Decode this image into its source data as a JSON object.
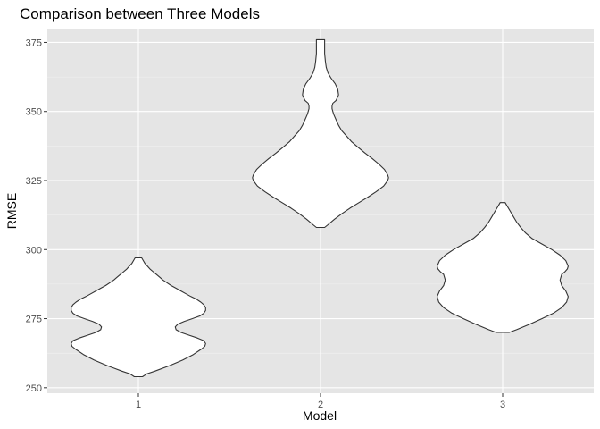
{
  "chart_data": {
    "type": "violin",
    "title": "Comparison between Three Models",
    "xlabel": "Model",
    "ylabel": "RMSE",
    "categories": [
      "1",
      "2",
      "3"
    ],
    "yticks": [
      250,
      275,
      300,
      325,
      350,
      375
    ],
    "ylim": [
      248,
      380
    ],
    "grid": true,
    "colors": {
      "panel": "#e5e5e5",
      "grid_major": "#ffffff",
      "violin_fill": "#ffffff",
      "violin_stroke": "#333333",
      "tick": "#333333"
    },
    "series": [
      {
        "category": "1",
        "min": 254,
        "max": 297,
        "profile": [
          [
            254,
            0.05
          ],
          [
            255,
            0.1
          ],
          [
            256,
            0.2
          ],
          [
            258,
            0.38
          ],
          [
            260,
            0.54
          ],
          [
            262,
            0.67
          ],
          [
            264,
            0.77
          ],
          [
            265,
            0.81
          ],
          [
            266,
            0.82
          ],
          [
            267,
            0.8
          ],
          [
            268,
            0.72
          ],
          [
            269,
            0.62
          ],
          [
            270,
            0.52
          ],
          [
            271,
            0.46
          ],
          [
            272,
            0.45
          ],
          [
            273,
            0.48
          ],
          [
            274,
            0.56
          ],
          [
            275,
            0.66
          ],
          [
            276,
            0.75
          ],
          [
            277,
            0.8
          ],
          [
            278,
            0.82
          ],
          [
            279,
            0.82
          ],
          [
            280,
            0.8
          ],
          [
            281,
            0.76
          ],
          [
            282,
            0.71
          ],
          [
            283,
            0.64
          ],
          [
            284,
            0.58
          ],
          [
            285,
            0.52
          ],
          [
            286,
            0.46
          ],
          [
            287,
            0.4
          ],
          [
            288,
            0.35
          ],
          [
            289,
            0.3
          ],
          [
            290,
            0.26
          ],
          [
            291,
            0.22
          ],
          [
            292,
            0.18
          ],
          [
            293,
            0.14
          ],
          [
            294,
            0.11
          ],
          [
            295,
            0.08
          ],
          [
            296,
            0.06
          ],
          [
            297,
            0.04
          ]
        ]
      },
      {
        "category": "2",
        "min": 308,
        "max": 376,
        "profile": [
          [
            308,
            0.05
          ],
          [
            309,
            0.09
          ],
          [
            311,
            0.17
          ],
          [
            313,
            0.26
          ],
          [
            315,
            0.36
          ],
          [
            317,
            0.47
          ],
          [
            319,
            0.58
          ],
          [
            321,
            0.68
          ],
          [
            323,
            0.77
          ],
          [
            325,
            0.82
          ],
          [
            326,
            0.83
          ],
          [
            327,
            0.82
          ],
          [
            329,
            0.78
          ],
          [
            331,
            0.71
          ],
          [
            333,
            0.63
          ],
          [
            335,
            0.54
          ],
          [
            337,
            0.46
          ],
          [
            339,
            0.38
          ],
          [
            341,
            0.32
          ],
          [
            343,
            0.26
          ],
          [
            345,
            0.22
          ],
          [
            347,
            0.19
          ],
          [
            349,
            0.16
          ],
          [
            351,
            0.14
          ],
          [
            352,
            0.14
          ],
          [
            353,
            0.15
          ],
          [
            354,
            0.19
          ],
          [
            356,
            0.22
          ],
          [
            358,
            0.21
          ],
          [
            360,
            0.18
          ],
          [
            362,
            0.13
          ],
          [
            364,
            0.09
          ],
          [
            366,
            0.07
          ],
          [
            368,
            0.06
          ],
          [
            371,
            0.05
          ],
          [
            374,
            0.05
          ],
          [
            376,
            0.05
          ]
        ]
      },
      {
        "category": "3",
        "min": 270,
        "max": 317,
        "profile": [
          [
            270,
            0.08
          ],
          [
            271,
            0.17
          ],
          [
            273,
            0.33
          ],
          [
            275,
            0.48
          ],
          [
            277,
            0.62
          ],
          [
            279,
            0.72
          ],
          [
            281,
            0.78
          ],
          [
            283,
            0.8
          ],
          [
            285,
            0.77
          ],
          [
            287,
            0.72
          ],
          [
            289,
            0.7
          ],
          [
            291,
            0.72
          ],
          [
            292,
            0.76
          ],
          [
            293,
            0.79
          ],
          [
            294,
            0.8
          ],
          [
            296,
            0.77
          ],
          [
            298,
            0.7
          ],
          [
            300,
            0.6
          ],
          [
            302,
            0.48
          ],
          [
            304,
            0.36
          ],
          [
            306,
            0.28
          ],
          [
            308,
            0.22
          ],
          [
            310,
            0.17
          ],
          [
            312,
            0.13
          ],
          [
            314,
            0.09
          ],
          [
            316,
            0.05
          ],
          [
            317,
            0.03
          ]
        ]
      }
    ]
  }
}
